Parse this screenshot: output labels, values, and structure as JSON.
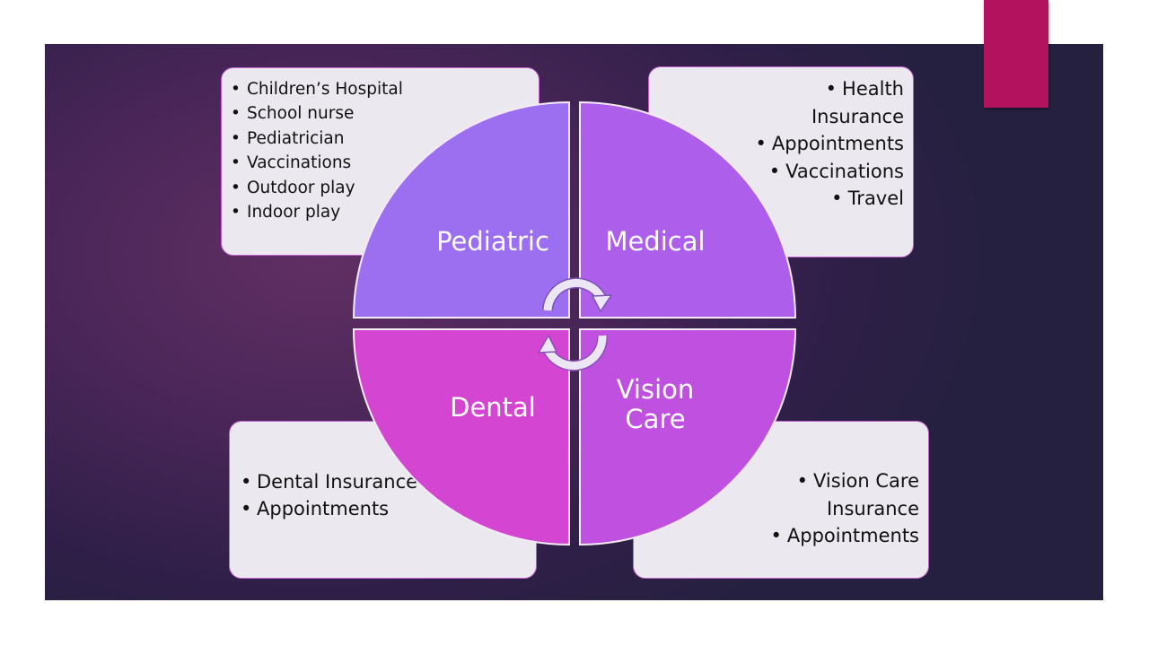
{
  "quadrants": {
    "pediatric": {
      "title": "Pediatric",
      "items": [
        "Children’s Hospital",
        "School nurse",
        "Pediatrician",
        "Vaccinations",
        "Outdoor play",
        "Indoor play"
      ]
    },
    "medical": {
      "title": "Medical",
      "items": [
        "Health",
        "Insurance",
        "Appointments",
        "Vaccinations",
        "Travel"
      ]
    },
    "dental": {
      "title": "Dental",
      "items": [
        "Dental Insurance",
        "Appointments"
      ]
    },
    "vision": {
      "title_line1": "Vision",
      "title_line2": "Care",
      "items": [
        "Vision Care",
        "Insurance",
        "Appointments"
      ]
    }
  },
  "colors": {
    "pediatric": "#9c6ef0",
    "medical": "#ad5eea",
    "dental": "#d445d2",
    "vision": "#bf50e0",
    "accent": "#b3125f",
    "box_border": "#c060cc",
    "box_fill": "#ece8ef"
  },
  "icons": {
    "cycle": "circular-arrows-icon"
  }
}
